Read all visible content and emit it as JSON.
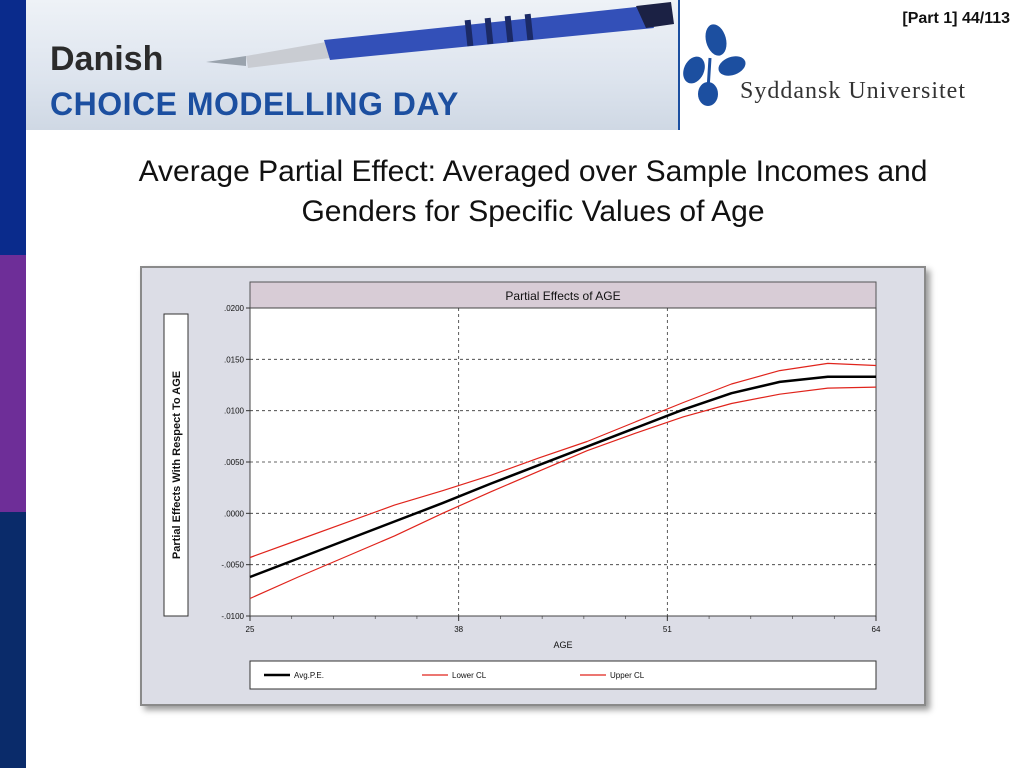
{
  "banner": {
    "line1": "Danish",
    "line2": "CHOICE MODELLING DAY"
  },
  "university": {
    "name": "Syddansk Universitet"
  },
  "slide": {
    "part_label": "[Part 1]   44/113",
    "title_line1": "Average Partial Effect: Averaged over Sample Incomes and",
    "title_line2": "Genders for Specific Values of Age"
  },
  "colors": {
    "sidebar_top": "#0a2b8c",
    "sidebar_mid": "#6e2e98",
    "sidebar_bottom": "#0a2b6a",
    "avg_line": "#000000",
    "ci_line": "#e0241c"
  },
  "chart_data": {
    "type": "line",
    "title": "Partial Effects of AGE",
    "xlabel": "AGE",
    "ylabel": "Partial Effects With Respect To AGE",
    "xlim": [
      25,
      64
    ],
    "ylim": [
      -0.01,
      0.02
    ],
    "x_ticks": [
      25,
      38,
      51,
      64
    ],
    "y_ticks": [
      {
        "v": 0.02,
        "label": ".0200"
      },
      {
        "v": 0.015,
        "label": ".0150"
      },
      {
        "v": 0.01,
        "label": ".0100"
      },
      {
        "v": 0.005,
        "label": ".0050"
      },
      {
        "v": 0.0,
        "label": ".0000"
      },
      {
        "v": -0.005,
        "label": "-.0050"
      },
      {
        "v": -0.01,
        "label": "-.0100"
      }
    ],
    "grid": true,
    "legend_position": "bottom",
    "x": [
      25,
      28,
      31,
      34,
      37,
      40,
      43,
      46,
      49,
      52,
      55,
      58,
      61,
      64
    ],
    "series": [
      {
        "name": "Avg.P.E.",
        "color": "#000000",
        "width": 2.5,
        "values": [
          -0.0062,
          -0.0044,
          -0.0026,
          -0.0008,
          0.001,
          0.0029,
          0.0047,
          0.0065,
          0.0083,
          0.0101,
          0.0117,
          0.0128,
          0.0133,
          0.0133
        ]
      },
      {
        "name": "Lower CL",
        "color": "#e0241c",
        "width": 1.2,
        "values": [
          -0.0083,
          -0.0062,
          -0.0042,
          -0.0022,
          0.0,
          0.0021,
          0.0041,
          0.0061,
          0.0078,
          0.0094,
          0.0107,
          0.0116,
          0.0122,
          0.0123
        ]
      },
      {
        "name": "Upper CL",
        "color": "#e0241c",
        "width": 1.2,
        "values": [
          -0.0043,
          -0.0026,
          -0.0009,
          0.0008,
          0.0022,
          0.0037,
          0.0054,
          0.007,
          0.0089,
          0.0108,
          0.0126,
          0.0139,
          0.0146,
          0.0144
        ]
      }
    ]
  }
}
